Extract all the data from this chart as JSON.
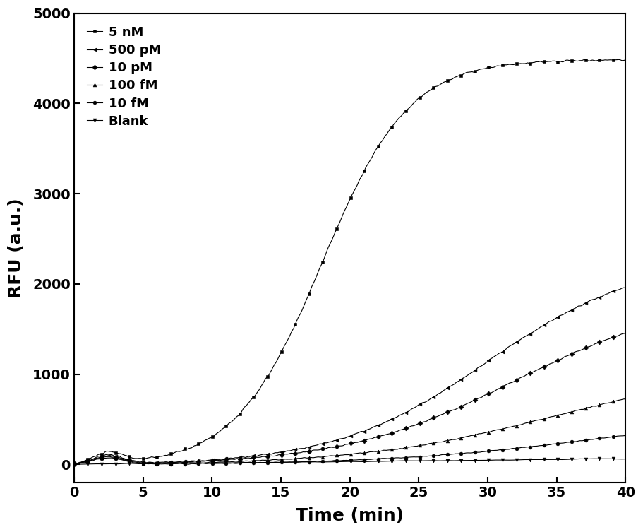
{
  "title": "",
  "xlabel": "Time (min)",
  "ylabel": "RFU (a.u.)",
  "xlim": [
    0,
    40
  ],
  "ylim": [
    -200,
    5000
  ],
  "yticks": [
    0,
    1000,
    2000,
    3000,
    4000,
    5000
  ],
  "xticks": [
    0,
    5,
    10,
    15,
    20,
    25,
    30,
    35,
    40
  ],
  "series": [
    {
      "label": "5 nM",
      "marker": "s",
      "final": 4500,
      "mid": 18.0,
      "steep": 0.32,
      "noise": 8,
      "seed": 10,
      "bump": 120
    },
    {
      "label": "500 pM",
      "marker": "<",
      "final": 2300,
      "mid": 30.0,
      "steep": 0.18,
      "noise": 6,
      "seed": 20,
      "bump": 100
    },
    {
      "label": "10 pM",
      "marker": "D",
      "final": 1880,
      "mid": 32.0,
      "steep": 0.16,
      "noise": 5,
      "seed": 30,
      "bump": 90
    },
    {
      "label": "100 fM",
      "marker": "^",
      "final": 1100,
      "mid": 35.0,
      "steep": 0.14,
      "noise": 4,
      "seed": 40,
      "bump": 80
    },
    {
      "label": "10 fM",
      "marker": "o",
      "final": 580,
      "mid": 38.0,
      "steep": 0.13,
      "noise": 3,
      "seed": 50,
      "bump": 70
    },
    {
      "label": "Blank",
      "marker": "v",
      "final": 70,
      "mid": 60.0,
      "steep": 0.1,
      "noise": 3,
      "seed": 60,
      "bump": 0
    }
  ],
  "background_color": "#ffffff",
  "marker_size": 3.5,
  "linewidth": 0.8,
  "legend_fontsize": 13,
  "axis_label_fontsize": 18,
  "tick_fontsize": 14,
  "n_points": 400
}
